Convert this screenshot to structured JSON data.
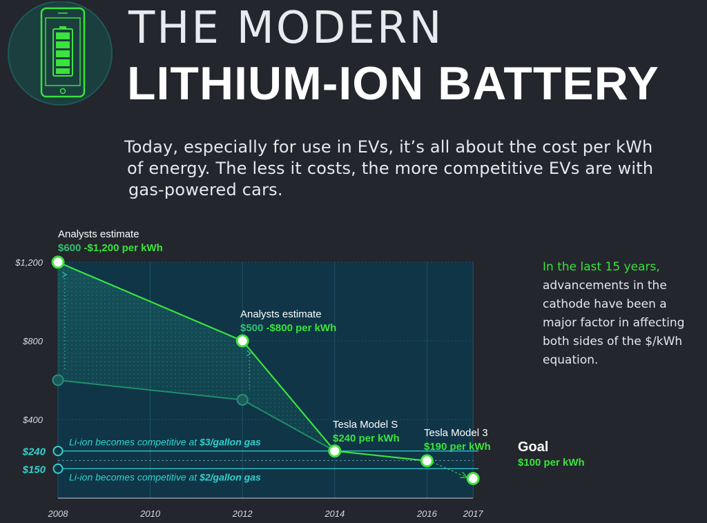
{
  "header": {
    "title_line1": "THE MODERN",
    "title_line2": "LITHIUM-ION BATTERY",
    "icon": "phone-battery-icon"
  },
  "intro": {
    "line1": "Today, especially for use in EVs, it’s all about the cost per kWh",
    "line2": "of energy. The less it costs, the more competitive EVs are with",
    "line3": "gas-powered cars."
  },
  "side_note": {
    "highlight": "In the last 15 years,",
    "rest": "advancements in the cathode have been a major factor in affecting both sides of the $/kWh equation."
  },
  "colors": {
    "background": "#23262d",
    "plot_fill": "#0f3547",
    "accent_green": "#3be33c",
    "accent_cyan": "#32d2cf",
    "dark_green_line": "#1f8f6a"
  },
  "chart_data": {
    "type": "line",
    "x_ticks": [
      "2008",
      "2010",
      "2012",
      "2014",
      "2016",
      "2017"
    ],
    "y_ticks": [
      "$1,200",
      "$800",
      "$400"
    ],
    "y_ticks_highlight": [
      "$240",
      "$150"
    ],
    "ylim": [
      0,
      1200
    ],
    "series": [
      {
        "x": [
          2008,
          2012,
          2014,
          2016,
          2017
        ],
        "y": [
          1200,
          800,
          240,
          190,
          100
        ]
      },
      {
        "x": [
          2008,
          2012,
          2014
        ],
        "y": [
          600,
          500,
          240
        ]
      }
    ],
    "reference_lines": [
      {
        "y": 240,
        "label": "Li-ion becomes competitive at $3/gallon gas",
        "bold": "$3/gallon gas",
        "plain": "Li-ion becomes competitive at "
      },
      {
        "y": 150,
        "label": "Li-ion becomes competitive at $2/gallon gas",
        "bold": "$2/gallon gas",
        "plain": "Li-ion becomes competitive at "
      }
    ],
    "annotations": [
      {
        "title": "Analysts estimate",
        "low": "$600",
        "high": "-$1,200 per kWh"
      },
      {
        "title": "Analysts estimate",
        "low": "$500",
        "high": "-$800 per kWh"
      },
      {
        "title": "Tesla Model S",
        "value": "$240 per kWh"
      },
      {
        "title": "Tesla Model 3",
        "value": "$190 per kWh"
      },
      {
        "title": "Goal",
        "value": "$100 per kWh"
      }
    ]
  }
}
